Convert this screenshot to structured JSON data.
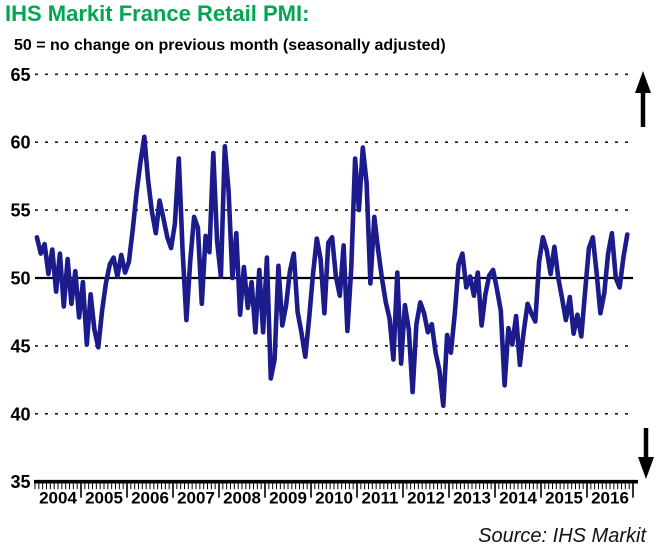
{
  "header": {
    "title": "IHS Markit France Retail PMI:",
    "subtitle": "50 = no change on previous month (seasonally adjusted)"
  },
  "footer": {
    "source": "Source: IHS Markit"
  },
  "colors": {
    "title_green": "#00A651",
    "line_navy": "#1B1B8C",
    "axis_black": "#000000",
    "grid_gray": "#1a1a1a"
  },
  "chart_data": {
    "type": "line",
    "title": "IHS Markit France Retail PMI",
    "subtitle": "50 = no change on previous month (seasonally adjusted)",
    "ylabel": "",
    "xlabel": "",
    "ylim": [
      35,
      65
    ],
    "y_ticks": [
      35,
      40,
      45,
      50,
      55,
      60,
      65
    ],
    "x_tick_labels": [
      "2004",
      "2005",
      "2006",
      "2007",
      "2008",
      "2009",
      "2010",
      "2011",
      "2012",
      "2013",
      "2014",
      "2015",
      "2016"
    ],
    "reference_line": 50,
    "grid": "dotted-horizontal",
    "legend": "none",
    "annotations": [
      "up-arrow-top-right",
      "down-arrow-bottom-right"
    ],
    "series": [
      {
        "name": "France Retail PMI (seasonally adjusted)",
        "frequency": "monthly",
        "start": "2004-01",
        "end": "2016-11",
        "values": [
          53.0,
          51.8,
          52.5,
          50.3,
          52.1,
          49.0,
          51.8,
          47.9,
          51.4,
          48.1,
          50.5,
          47.1,
          49.7,
          45.1,
          48.8,
          46.2,
          44.9,
          47.6,
          49.6,
          51.0,
          51.5,
          50.1,
          51.7,
          50.4,
          51.2,
          53.6,
          56.3,
          58.5,
          60.4,
          57.2,
          54.9,
          53.3,
          55.7,
          54.4,
          53.0,
          52.2,
          54.0,
          58.8,
          52.0,
          46.9,
          51.3,
          54.5,
          53.7,
          48.1,
          53.1,
          51.9,
          59.2,
          52.7,
          50.1,
          59.7,
          56.4,
          50.0,
          53.3,
          47.3,
          50.8,
          47.8,
          49.7,
          46.0,
          50.6,
          46.0,
          51.5,
          42.6,
          44.0,
          50.9,
          46.5,
          48.0,
          50.5,
          51.8,
          47.5,
          46.0,
          44.2,
          47.0,
          50.2,
          52.9,
          51.4,
          47.4,
          52.6,
          53.0,
          50.1,
          48.7,
          52.4,
          46.1,
          50.8,
          58.8,
          55.0,
          59.6,
          57.0,
          49.6,
          54.5,
          52.1,
          50.0,
          48.2,
          47.0,
          44.0,
          50.4,
          43.7,
          48.0,
          46.2,
          41.6,
          46.6,
          48.2,
          47.4,
          46.0,
          46.6,
          44.5,
          43.2,
          40.6,
          45.8,
          44.5,
          47.4,
          51.0,
          51.8,
          49.3,
          50.1,
          48.7,
          50.4,
          46.5,
          48.8,
          50.2,
          50.6,
          49.2,
          47.6,
          42.1,
          46.3,
          45.1,
          47.2,
          43.6,
          46.1,
          48.1,
          47.4,
          46.8,
          51.2,
          53.0,
          52.0,
          50.3,
          52.3,
          50.0,
          48.5,
          46.9,
          48.6,
          45.9,
          47.3,
          45.7,
          49.0,
          52.2,
          53.0,
          50.4,
          47.4,
          48.9,
          51.8,
          53.3,
          50.0,
          49.3,
          51.5,
          53.2
        ]
      }
    ]
  }
}
